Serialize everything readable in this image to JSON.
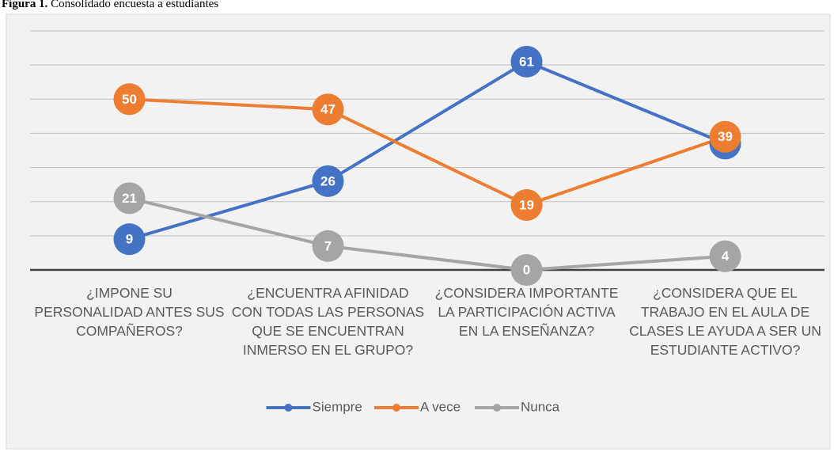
{
  "chart_data": {
    "type": "line",
    "title_prefix": "Figura 1.",
    "title": "Consolidado encuesta a estudiantes",
    "categories": [
      "¿IMPONE SU PERSONALIDAD ANTES SUS COMPAÑEROS?",
      "¿ENCUENTRA AFINIDAD CON TODAS LAS PERSONAS QUE SE ENCUENTRAN INMERSO EN EL GRUPO?",
      "¿CONSIDERA IMPORTANTE LA PARTICIPACIÓN ACTIVA EN LA ENSEÑANZA?",
      "¿CONSIDERA QUE EL TRABAJO EN EL AULA DE CLASES LE AYUDA A SER UN ESTUDIANTE ACTIVO?"
    ],
    "series": [
      {
        "name": "Siempre",
        "color": "#4472c4",
        "values": [
          9,
          26,
          61,
          37
        ]
      },
      {
        "name": "A vece",
        "color": "#ed7d31",
        "values": [
          50,
          47,
          19,
          39
        ]
      },
      {
        "name": "Nunca",
        "color": "#a5a5a5",
        "values": [
          21,
          7,
          0,
          4
        ]
      }
    ],
    "ylim": [
      0,
      70
    ],
    "yticks": [
      0,
      10,
      20,
      30,
      40,
      50,
      60,
      70
    ],
    "grid": true,
    "legend": "bottom"
  }
}
